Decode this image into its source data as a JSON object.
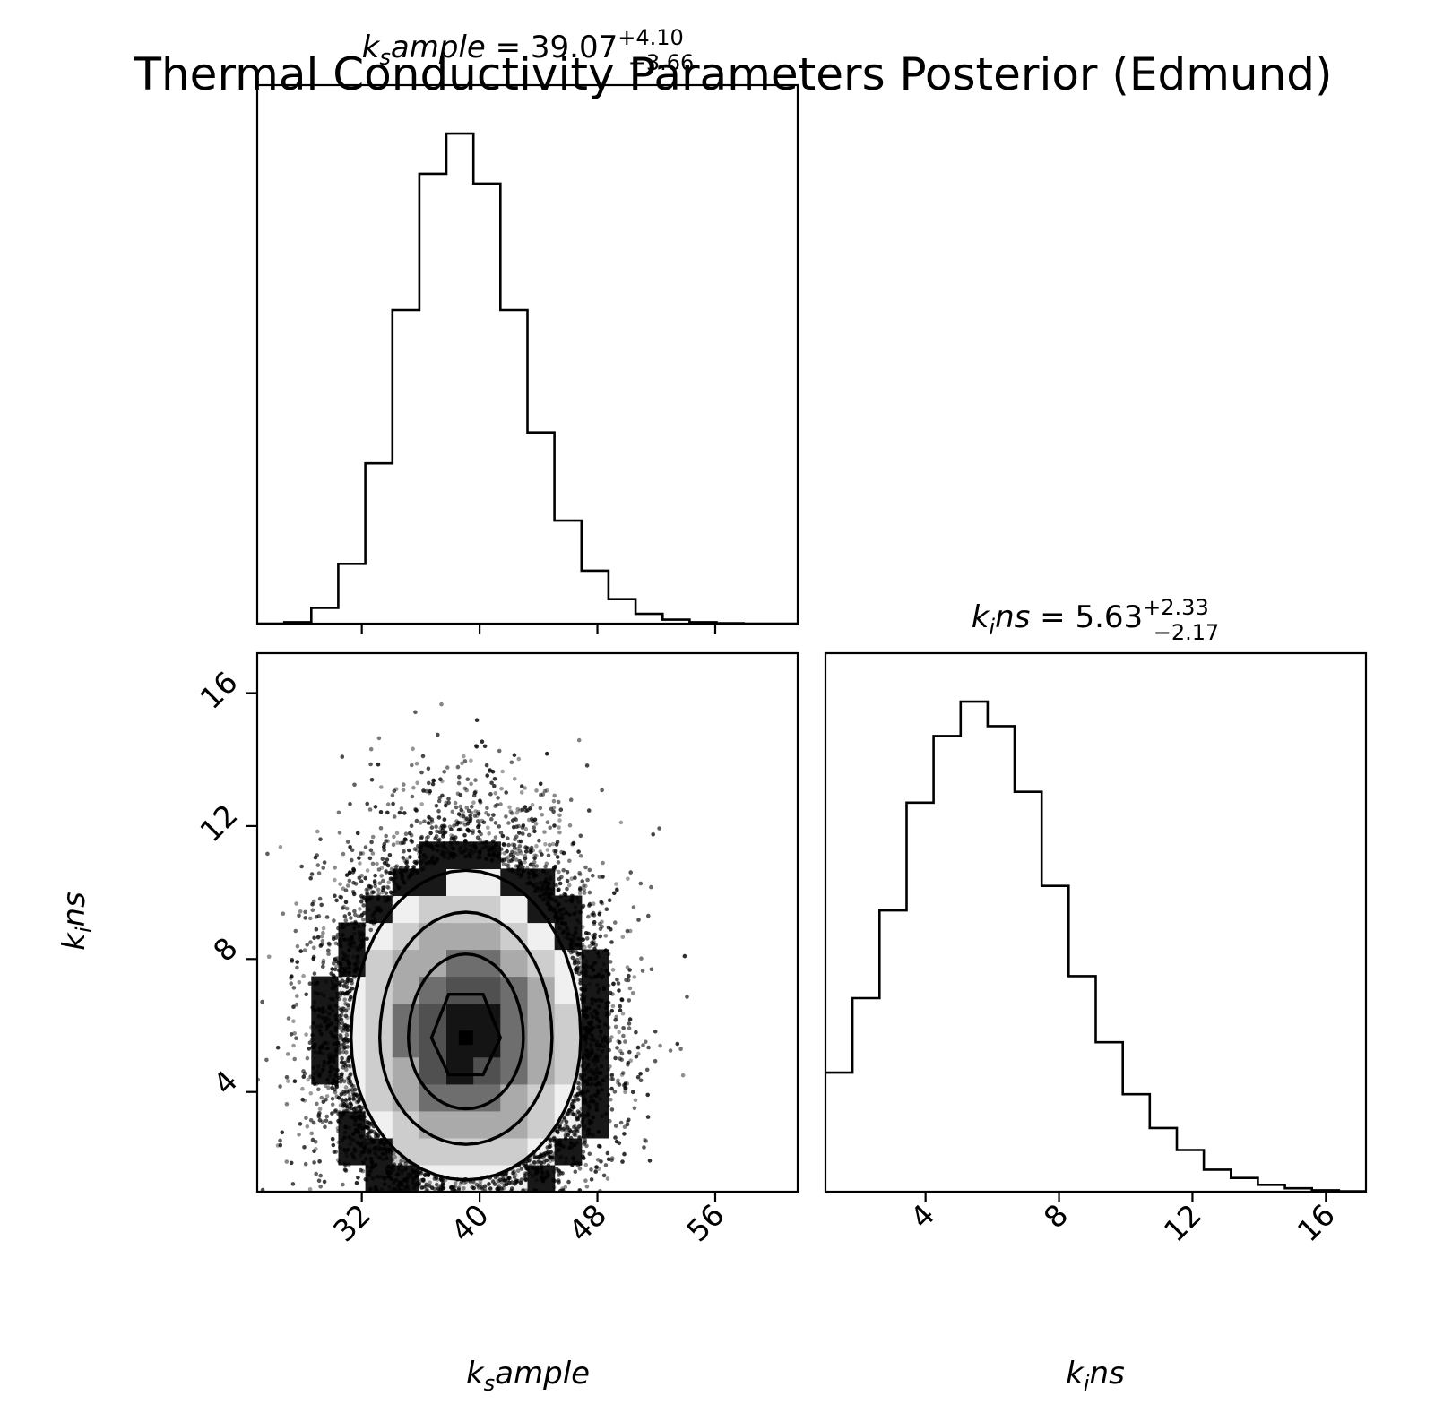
{
  "chart_data": {
    "type": "corner",
    "title": "Thermal Conductivity Parameters Posterior (Edmund)",
    "parameters": [
      {
        "name": "k_sample",
        "label_base": "k",
        "label_sub": "s",
        "label_rest": "ample",
        "range": [
          24.9,
          61.6
        ],
        "ticks": [
          32,
          40,
          48,
          56
        ],
        "tick_labels": [
          "32",
          "40",
          "48",
          "56"
        ],
        "median": "39.07",
        "err_plus": "+4.10",
        "err_minus": "−3.66",
        "histogram": {
          "bin_start": 24.9,
          "bin_width": 1.835,
          "counts": [
            0,
            0.3,
            3.2,
            12.2,
            32.7,
            64.0,
            91.8,
            100,
            89.8,
            64.0,
            39.0,
            21.0,
            10.8,
            5.0,
            2.0,
            0.8,
            0.3,
            0.1,
            0,
            0
          ]
        }
      },
      {
        "name": "k_ins",
        "label_base": "k",
        "label_sub": "i",
        "label_rest": "ns",
        "range": [
          1.0,
          17.2
        ],
        "ticks": [
          4,
          8,
          12,
          16
        ],
        "tick_labels": [
          "4",
          "8",
          "12",
          "16"
        ],
        "median": "5.63",
        "err_plus": "+2.33",
        "err_minus": "−2.17",
        "histogram": {
          "bin_start": 1.0,
          "bin_width": 0.81,
          "counts": [
            24.3,
            39.5,
            57.4,
            79.4,
            93.0,
            100,
            95.0,
            81.6,
            62.4,
            44.0,
            30.5,
            19.9,
            13.0,
            8.5,
            4.5,
            2.8,
            1.4,
            0.7,
            0.3,
            0.1
          ]
        }
      }
    ],
    "joint": {
      "center": [
        39.07,
        5.63
      ],
      "sigma": [
        3.9,
        2.25
      ],
      "contour_levels": [
        "0.5",
        "1.0",
        "1.5",
        "2.0"
      ]
    }
  }
}
